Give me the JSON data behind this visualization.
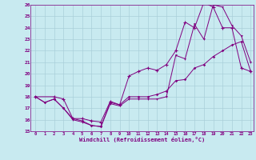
{
  "xlabel": "Windchill (Refroidissement éolien,°C)",
  "xlim": [
    -0.5,
    23.3
  ],
  "ylim": [
    15,
    26
  ],
  "yticks": [
    15,
    16,
    17,
    18,
    19,
    20,
    21,
    22,
    23,
    24,
    25,
    26
  ],
  "xticks": [
    0,
    1,
    2,
    3,
    4,
    5,
    6,
    7,
    8,
    9,
    10,
    11,
    12,
    13,
    14,
    15,
    16,
    17,
    18,
    19,
    20,
    21,
    22,
    23
  ],
  "background_color": "#c8eaf0",
  "grid_color": "#aacfda",
  "line_color": "#800080",
  "line1_x": [
    0,
    1,
    2,
    3,
    4,
    5,
    6,
    7,
    8,
    9,
    10,
    11,
    12,
    13,
    14,
    15,
    16,
    17,
    18,
    19,
    20,
    21,
    22,
    23
  ],
  "line1_y": [
    18.0,
    17.5,
    17.8,
    17.0,
    16.0,
    15.8,
    15.5,
    15.4,
    17.4,
    17.2,
    17.8,
    17.8,
    17.8,
    17.8,
    18.0,
    21.6,
    21.3,
    24.3,
    23.0,
    26.0,
    25.8,
    24.2,
    23.3,
    21.0
  ],
  "line2_x": [
    0,
    2,
    3,
    4,
    5,
    6,
    7,
    8,
    9,
    10,
    11,
    12,
    13,
    14,
    15,
    16,
    17,
    18,
    19,
    20,
    21,
    22,
    23
  ],
  "line2_y": [
    18.0,
    18.0,
    17.8,
    16.1,
    16.1,
    15.9,
    15.8,
    17.6,
    17.3,
    19.8,
    20.2,
    20.5,
    20.3,
    20.8,
    22.0,
    24.5,
    24.0,
    26.2,
    25.8,
    24.0,
    24.0,
    20.5,
    20.2
  ],
  "line3_x": [
    0,
    1,
    2,
    3,
    4,
    5,
    6,
    7,
    8,
    9,
    10,
    11,
    12,
    13,
    14,
    15,
    16,
    17,
    18,
    19,
    20,
    21,
    22,
    23
  ],
  "line3_y": [
    18.0,
    17.5,
    17.8,
    17.0,
    16.1,
    15.9,
    15.5,
    15.4,
    17.5,
    17.3,
    18.0,
    18.0,
    18.0,
    18.2,
    18.5,
    19.4,
    19.5,
    20.5,
    20.8,
    21.5,
    22.0,
    22.5,
    22.8,
    20.2
  ]
}
